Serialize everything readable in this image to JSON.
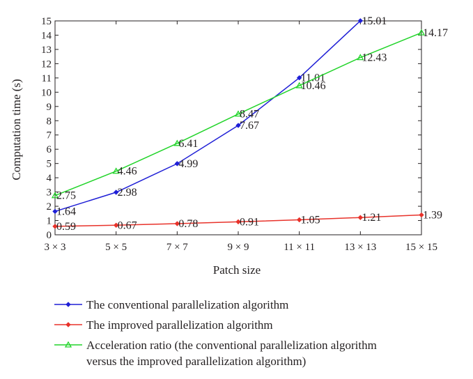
{
  "chart_data": {
    "type": "line",
    "categories": [
      "3 × 3",
      "5 × 5",
      "7 × 7",
      "9 × 9",
      "11 × 11",
      "13 × 13",
      "15 × 15"
    ],
    "xlabel": "Patch size",
    "ylabel": "Computation time (s)",
    "ylim": [
      0,
      15
    ],
    "yticks": [
      0,
      1,
      2,
      3,
      4,
      5,
      6,
      7,
      8,
      9,
      10,
      11,
      12,
      13,
      14,
      15
    ],
    "grid": false,
    "legend_position": "bottom",
    "series": [
      {
        "name": "The conventional parallelization algorithm",
        "color": "#1f1fd6",
        "marker": "diamond",
        "values": [
          1.64,
          2.98,
          4.99,
          7.67,
          11.01,
          15.01,
          null
        ],
        "labels": [
          "1.64",
          "2.98",
          "4.99",
          "7.67",
          "11.01",
          "15.01",
          ""
        ]
      },
      {
        "name": "The improved parallelization algorithm",
        "color": "#e8322a",
        "marker": "diamond",
        "values": [
          0.59,
          0.67,
          0.78,
          0.91,
          1.05,
          1.21,
          1.39
        ],
        "labels": [
          "0.59",
          "0.67",
          "0.78",
          "0.91",
          "1.05",
          "1.21",
          "1.39"
        ]
      },
      {
        "name": "Acceleration ratio (the conventional parallelization algorithm",
        "name_line2": "versus the improved parallelization algorithm)",
        "color": "#22d42a",
        "marker": "triangle",
        "values": [
          2.75,
          4.46,
          6.41,
          8.47,
          10.46,
          12.43,
          14.17
        ],
        "labels": [
          "2.75",
          "4.46",
          "6.41",
          "8.47",
          "10.46",
          "12.43",
          "14.17"
        ]
      }
    ]
  }
}
